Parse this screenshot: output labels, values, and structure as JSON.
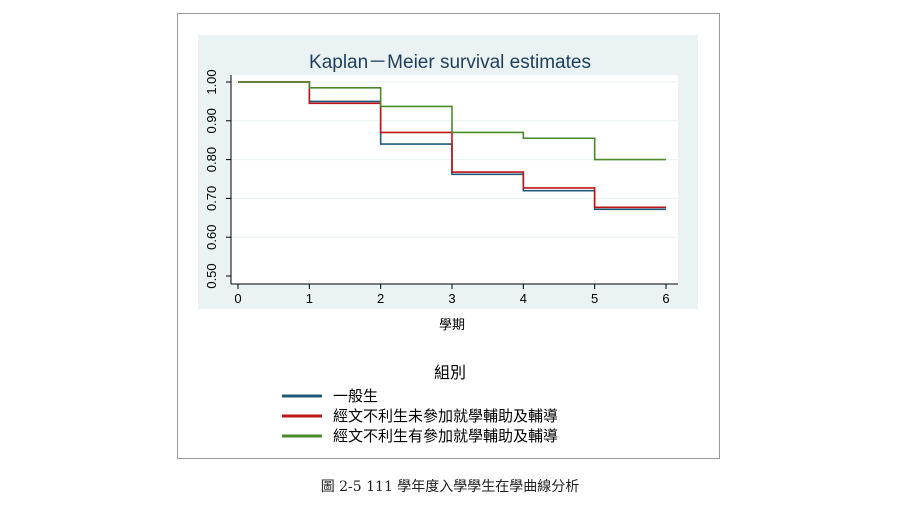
{
  "caption": "圖 2-5 111 學年度入學學生在學曲線分析",
  "chart_data": {
    "type": "line",
    "step": true,
    "title": "Kaplan－Meier survival estimates",
    "xlabel": "學期",
    "ylabel": "",
    "xlim": [
      0,
      6
    ],
    "ylim": [
      0.5,
      1.0
    ],
    "x_ticks": [
      "0",
      "1",
      "2",
      "3",
      "4",
      "5",
      "6"
    ],
    "y_ticks": [
      "0.50",
      "0.60",
      "0.70",
      "0.80",
      "0.90",
      "1.00"
    ],
    "grid": true,
    "legend_title": "組別",
    "legend_position": "bottom",
    "series": [
      {
        "name": "一般生",
        "color": "#1f5a78",
        "x": [
          0,
          1,
          2,
          3,
          4,
          5,
          6
        ],
        "y": [
          1.0,
          0.95,
          0.84,
          0.762,
          0.72,
          0.672,
          0.672
        ]
      },
      {
        "name": "經文不利生未參加就學輔助及輔導",
        "color": "#c0141a",
        "x": [
          0,
          1,
          2,
          3,
          4,
          5,
          6
        ],
        "y": [
          1.0,
          0.945,
          0.87,
          0.768,
          0.727,
          0.677,
          0.677
        ]
      },
      {
        "name": "經文不利生有參加就學輔助及輔導",
        "color": "#4a8a2a",
        "x": [
          0,
          1,
          2,
          3,
          4,
          5,
          6
        ],
        "y": [
          1.0,
          0.985,
          0.937,
          0.87,
          0.855,
          0.8,
          0.8
        ]
      }
    ]
  }
}
